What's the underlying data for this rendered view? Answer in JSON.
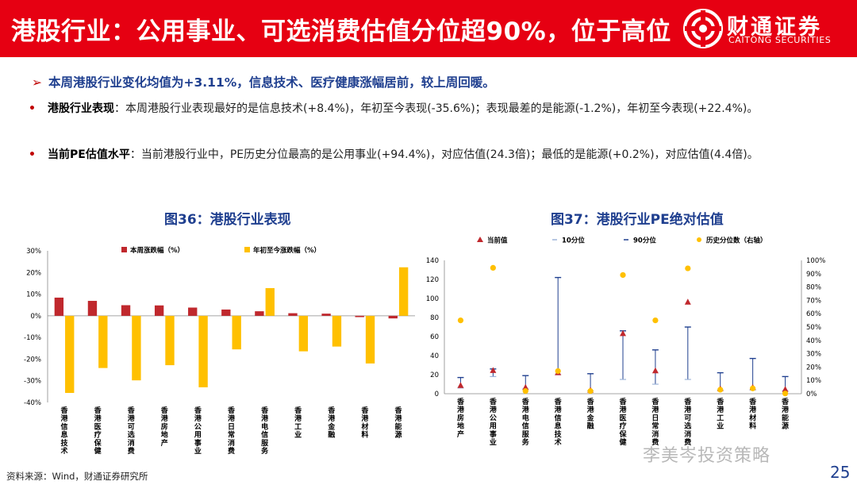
{
  "header": {
    "title": "港股行业：公用事业、可选消费估值分位超90%，位于高位",
    "logo_cn": "财通证券",
    "logo_en": "CAITONG SECURITIES"
  },
  "summary": {
    "arrow": "➢",
    "text": "本周港股行业变化均值为+3.11%，信息技术、医疗健康涨幅居前，较上周回暖。"
  },
  "bullets": [
    {
      "bold": "港股行业表现",
      "text": "：本周港股行业表现最好的是信息技术(+8.4%)，年初至今表现(-35.6%)；表现最差的是能源(-1.2%)，年初至今表现(+22.4%)。"
    },
    {
      "bold": "当前PE估值水平",
      "text": "：当前港股行业中，PE历史分位最高的是公用事业(+94.4%)，对应估值(24.3倍)；最低的是能源(+0.2%)，对应估值(4.4倍)。"
    }
  ],
  "chart_data": [
    {
      "type": "bar",
      "title": "图36：港股行业表现",
      "categories": [
        "香港信息技术",
        "香港医疗保健",
        "香港可选消费",
        "香港房地产",
        "香港公用事业",
        "香港日常消费",
        "香港电信服务",
        "香港工业",
        "香港金融",
        "香港材料",
        "香港能源"
      ],
      "series": [
        {
          "name": "本周涨跌幅（%）",
          "color": "#c0282d",
          "values": [
            8.4,
            6.9,
            4.9,
            4.8,
            3.8,
            2.9,
            2.1,
            1.2,
            1.0,
            -0.6,
            -1.2
          ]
        },
        {
          "name": "年初至今涨跌幅（%）",
          "color": "#ffc000",
          "values": [
            -35.6,
            -24.1,
            -29.8,
            -22.8,
            -33.0,
            -15.5,
            12.8,
            -16.4,
            -14.2,
            -22.0,
            22.4
          ]
        }
      ],
      "ylim": [
        -40,
        30
      ],
      "yticks": [
        "30%",
        "20%",
        "10%",
        "0%",
        "-10%",
        "-20%",
        "-30%",
        "-40%"
      ],
      "legend": "top"
    },
    {
      "type": "scatter",
      "title": "图37：港股行业PE绝对估值",
      "categories": [
        "香港房地产",
        "香港公用事业",
        "香港电信服务",
        "香港信息技术",
        "香港金融",
        "香港医疗保健",
        "香港日常消费",
        "香港可选消费",
        "香港工业",
        "香港材料",
        "香港能源"
      ],
      "legend": [
        "当前值",
        "10分位",
        "90分位",
        "历史分位数（右轴）"
      ],
      "current": [
        8.5,
        24.3,
        6.5,
        22,
        3.5,
        63,
        24,
        96,
        5,
        6.5,
        4.4
      ],
      "p10": [
        6,
        18,
        5,
        20,
        3,
        15,
        10,
        15,
        4,
        4,
        3
      ],
      "p90": [
        17,
        26,
        19,
        122,
        21,
        66,
        46,
        70,
        22,
        37,
        18
      ],
      "percentile": [
        55,
        94.4,
        2,
        17,
        2,
        89,
        55,
        94,
        3,
        4,
        0.2
      ],
      "ylim_left": [
        0,
        140
      ],
      "ylim_right": [
        0,
        100
      ],
      "yticks_left": [
        "140",
        "120",
        "100",
        "80",
        "60",
        "40",
        "20",
        "0"
      ],
      "yticks_right": [
        "100%",
        "90%",
        "80%",
        "70%",
        "60%",
        "50%",
        "40%",
        "30%",
        "20%",
        "10%",
        "0%"
      ],
      "colors": {
        "current": "#c0282d",
        "range": "#1f3f8f",
        "percentile": "#ffc000"
      }
    }
  ],
  "footer": {
    "source": "资料来源：Wind，财通证券研究所",
    "watermark": "李美岑投资策略",
    "page": "25"
  }
}
